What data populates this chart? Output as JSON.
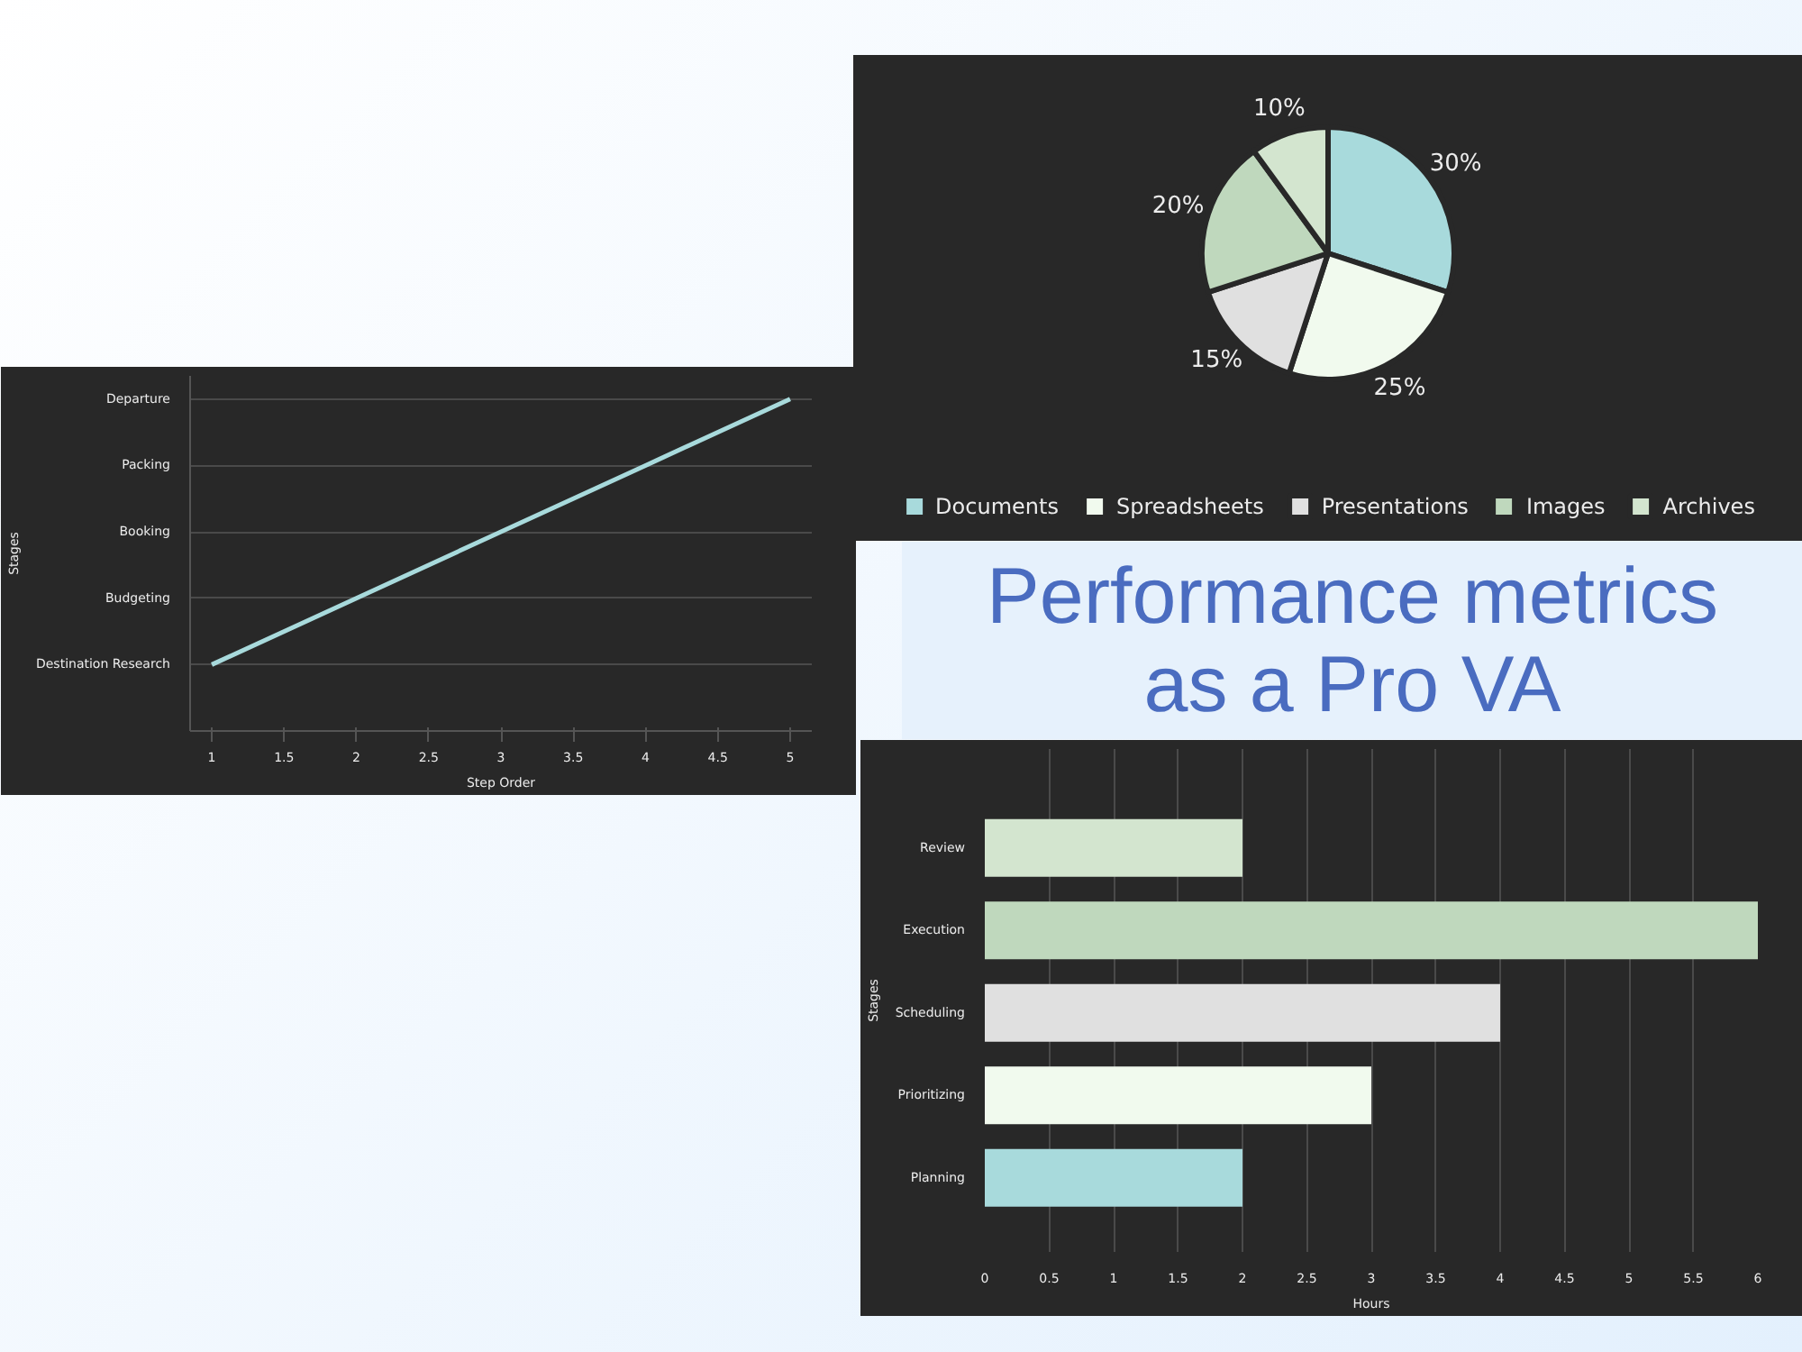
{
  "chart_data": [
    {
      "type": "pie",
      "categories": [
        "Documents",
        "Spreadsheets",
        "Presentations",
        "Images",
        "Archives"
      ],
      "values": [
        30,
        25,
        15,
        20,
        10
      ],
      "colors": [
        "#a8dadc",
        "#f1faee",
        "#e0e0e0",
        "#bfd8bd",
        "#d3e5cf"
      ],
      "value_labels": [
        "30%",
        "25%",
        "15%",
        "20%",
        "10%"
      ],
      "legend": "bottom"
    },
    {
      "type": "line",
      "orientation": "horizontal",
      "categories": [
        "Departure",
        "Packing",
        "Booking",
        "Budgeting",
        "Destination Research"
      ],
      "values": [
        5,
        4,
        3,
        2,
        1
      ],
      "color": "#a8dadc",
      "xlim": [
        0.85,
        5.15
      ],
      "xticks": [
        1,
        1.5,
        2,
        2.5,
        3,
        3.5,
        4,
        4.5,
        5
      ],
      "xlabel": "Step Order",
      "ylabel": "Stages",
      "grid": "y"
    },
    {
      "type": "other",
      "title": "Performance metrics\nas a Pro VA"
    },
    {
      "type": "bar",
      "orientation": "horizontal",
      "categories": [
        "Review",
        "Execution",
        "Scheduling",
        "Prioritizing",
        "Planning"
      ],
      "values": [
        2,
        6,
        4,
        3,
        2
      ],
      "colors": [
        "#d3e5cf",
        "#bfd8bd",
        "#e0e0e0",
        "#f1faee",
        "#a8dadc"
      ],
      "xlim": [
        0,
        6
      ],
      "xticks": [
        0,
        0.5,
        1,
        1.5,
        2,
        2.5,
        3,
        3.5,
        4,
        4.5,
        5,
        5.5,
        6
      ],
      "xlabel": "Hours",
      "ylabel": "Stages",
      "grid": "x"
    }
  ]
}
